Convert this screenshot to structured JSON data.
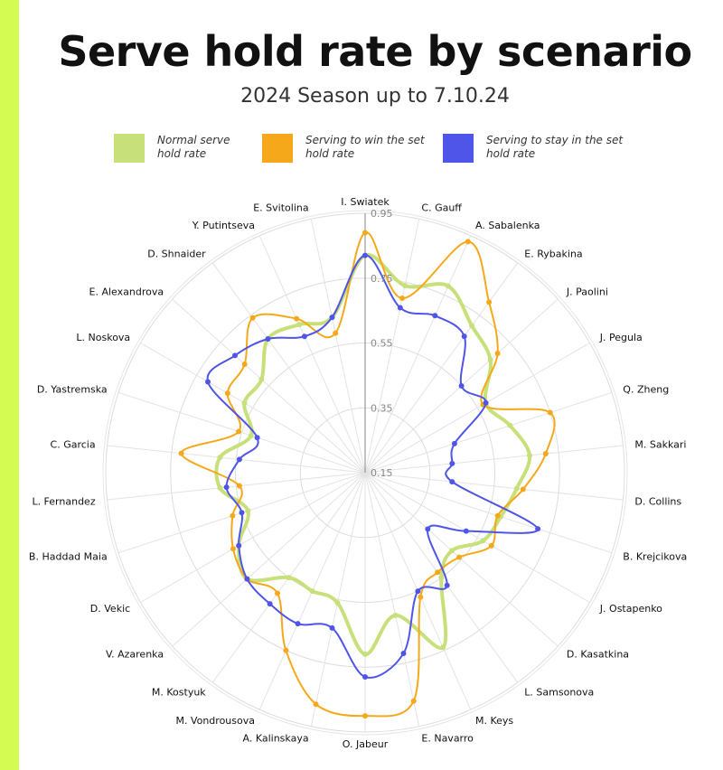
{
  "title": "Serve hold rate by scenario",
  "subtitle": "2024 Season up to 7.10.24",
  "colors": {
    "accent_bar": "#d3fb52",
    "grid": "#dddddd",
    "axis": "#999999"
  },
  "chart_data": {
    "type": "radar",
    "title": "Serve hold rate by scenario",
    "subtitle": "2024 Season up to 7.10.24",
    "ticks": [
      0.15,
      0.35,
      0.55,
      0.75,
      0.95
    ],
    "tick_labels": [
      "0.15",
      "0.35",
      "0.55",
      "0.75",
      "0.95"
    ],
    "range": [
      0.15,
      0.95
    ],
    "grid": true,
    "legend_position": "top",
    "categories": [
      "I. Swiatek",
      "C. Gauff",
      "A. Sabalenka",
      "E. Rybakina",
      "J. Paolini",
      "J. Pegula",
      "Q. Zheng",
      "M. Sakkari",
      "D. Collins",
      "B. Krejcikova",
      "J. Ostapenko",
      "D. Kasatkina",
      "L. Samsonova",
      "M. Keys",
      "E. Navarro",
      "O. Jabeur",
      "A. Kalinskaya",
      "M. Vondrousova",
      "M. Kostyuk",
      "V. Azarenka",
      "D. Vekic",
      "B. Haddad Maia",
      "L. Fernandez",
      "C. Garcia",
      "D. Yastremska",
      "L. Noskova",
      "E. Alexandrova",
      "D. Shnaider",
      "Y. Putintseva",
      "E. Svitolina"
    ],
    "series": [
      {
        "name": "Normal serve\nhold rate",
        "color": "#c8e07a",
        "values": [
          0.82,
          0.74,
          0.78,
          0.71,
          0.67,
          0.58,
          0.62,
          0.66,
          0.62,
          0.59,
          0.57,
          0.51,
          0.55,
          0.74,
          0.6,
          0.71,
          0.56,
          0.55,
          0.55,
          0.64,
          0.6,
          0.53,
          0.6,
          0.6,
          0.52,
          0.58,
          0.58,
          0.66,
          0.65,
          0.64
        ]
      },
      {
        "name": "Serving to win the set\nhold rate",
        "color": "#f5a91a",
        "values": [
          0.89,
          0.7,
          0.93,
          0.8,
          0.7,
          0.57,
          0.75,
          0.71,
          0.64,
          0.58,
          0.6,
          0.54,
          0.53,
          0.57,
          0.87,
          0.9,
          0.88,
          0.75,
          0.61,
          0.64,
          0.62,
          0.58,
          0.54,
          0.72,
          0.56,
          0.64,
          0.65,
          0.74,
          0.67,
          0.59
        ]
      },
      {
        "name": "Serving to stay in the set\nhold rate",
        "color": "#4e55e8",
        "values": [
          0.82,
          0.67,
          0.68,
          0.67,
          0.55,
          0.58,
          0.44,
          0.42,
          0.42,
          0.71,
          0.51,
          0.41,
          0.58,
          0.55,
          0.72,
          0.78,
          0.64,
          0.66,
          0.65,
          0.64,
          0.6,
          0.55,
          0.58,
          0.54,
          0.5,
          0.71,
          0.69,
          0.66,
          0.61,
          0.64
        ]
      }
    ]
  }
}
